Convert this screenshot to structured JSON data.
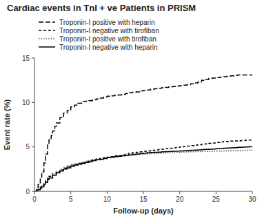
{
  "chart_data": {
    "type": "step",
    "title": "Cardiac events in TnI + ve Patients in PRISM",
    "x_label": "Follow-up (days)",
    "y_label": "Event rate (%)",
    "xlim": [
      0,
      30
    ],
    "ylim": [
      0,
      15
    ],
    "xticks": [
      0,
      5,
      10,
      15,
      20,
      25,
      30
    ],
    "yticks": [
      0,
      5,
      10,
      15
    ],
    "grid": false,
    "legend": "upper left",
    "series": [
      {
        "name": "Troponin-I positive with heparin",
        "color": "#000000",
        "line_style": "longdash",
        "x": [
          0,
          0.3,
          0.5,
          0.8,
          1.0,
          1.3,
          1.5,
          1.8,
          2.0,
          2.3,
          2.5,
          2.8,
          3.0,
          3.5,
          4.0,
          4.5,
          5.0,
          5.5,
          6.0,
          6.5,
          7.0,
          7.5,
          8.0,
          8.5,
          9.0,
          9.5,
          10.0,
          10.5,
          11.0,
          11.5,
          12.0,
          12.5,
          13.0,
          13.5,
          14.0,
          14.5,
          15.0,
          15.5,
          16.0,
          16.5,
          17.0,
          17.5,
          18.0,
          18.5,
          19.0,
          19.5,
          20.0,
          20.5,
          21.0,
          21.5,
          22.0,
          22.5,
          23.0,
          23.5,
          24.0,
          24.5,
          25.0,
          25.5,
          26.0,
          26.5,
          27.0,
          27.5,
          28.0,
          28.5,
          29.0,
          29.5,
          30.0
        ],
        "values": [
          0,
          0.3,
          0.8,
          1.5,
          2.2,
          3.2,
          4.2,
          5.2,
          5.8,
          6.3,
          6.8,
          7.3,
          7.7,
          8.3,
          8.8,
          9.1,
          9.5,
          9.7,
          9.9,
          10.1,
          10.15,
          10.2,
          10.3,
          10.4,
          10.5,
          10.6,
          10.7,
          10.75,
          10.8,
          10.85,
          10.9,
          11.0,
          11.1,
          11.15,
          11.2,
          11.3,
          11.35,
          11.4,
          11.5,
          11.55,
          11.6,
          11.65,
          11.7,
          11.75,
          11.8,
          11.85,
          11.9,
          11.95,
          12.0,
          12.1,
          12.2,
          12.3,
          12.5,
          12.6,
          12.7,
          12.75,
          12.8,
          12.85,
          12.9,
          12.95,
          13.0,
          13.05,
          13.1,
          13.1,
          13.1,
          13.1,
          13.1
        ]
      },
      {
        "name": "Troponin-I negative with tirofiban",
        "color": "#000000",
        "line_style": "dashed",
        "x": [
          0,
          0.3,
          0.5,
          0.8,
          1.0,
          1.3,
          1.5,
          1.8,
          2.0,
          2.5,
          3.0,
          3.5,
          4.0,
          4.5,
          5.0,
          5.5,
          6.0,
          6.5,
          7.0,
          7.5,
          8.0,
          8.5,
          9.0,
          9.5,
          10.0,
          10.5,
          11.0,
          11.5,
          12.0,
          12.5,
          13.0,
          13.5,
          14.0,
          14.5,
          15.0,
          15.5,
          16.0,
          16.5,
          17.0,
          17.5,
          18.0,
          18.5,
          19.0,
          19.5,
          20.0,
          20.5,
          21.0,
          21.5,
          22.0,
          22.5,
          23.0,
          23.5,
          24.0,
          24.5,
          25.0,
          25.5,
          26.0,
          26.5,
          27.0,
          27.5,
          28.0,
          28.5,
          29.0,
          29.5,
          30.0
        ],
        "values": [
          0,
          0.1,
          0.2,
          0.5,
          0.7,
          1.0,
          1.3,
          1.5,
          1.7,
          2.0,
          2.2,
          2.4,
          2.6,
          2.8,
          2.95,
          3.05,
          3.15,
          3.25,
          3.35,
          3.45,
          3.55,
          3.65,
          3.7,
          3.8,
          3.85,
          3.9,
          4.0,
          4.05,
          4.1,
          4.2,
          4.3,
          4.35,
          4.4,
          4.45,
          4.5,
          4.55,
          4.6,
          4.65,
          4.7,
          4.75,
          4.8,
          4.85,
          4.9,
          4.95,
          5.0,
          5.05,
          5.1,
          5.15,
          5.2,
          5.25,
          5.3,
          5.35,
          5.4,
          5.45,
          5.5,
          5.55,
          5.6,
          5.62,
          5.65,
          5.67,
          5.7,
          5.72,
          5.75,
          5.77,
          5.8
        ]
      },
      {
        "name": "Troponin-I positive with tirofiban",
        "color": "#555555",
        "line_style": "dotted",
        "x": [
          0,
          0.3,
          0.5,
          0.8,
          1.0,
          1.3,
          1.5,
          1.8,
          2.0,
          2.5,
          3.0,
          3.5,
          4.0,
          4.5,
          5.0,
          5.5,
          6.0,
          6.5,
          7.0,
          7.5,
          8.0,
          8.5,
          9.0,
          9.5,
          10.0,
          10.5,
          11.0,
          11.5,
          12.0,
          12.5,
          13.0,
          13.5,
          14.0,
          14.5,
          15.0,
          15.5,
          16.0,
          16.5,
          17.0,
          17.5,
          18.0,
          18.5,
          19.0,
          19.5,
          20.0,
          20.5,
          21.0,
          21.5,
          22.0,
          22.5,
          23.0,
          23.5,
          24.0,
          24.5,
          25.0,
          25.5,
          26.0,
          26.5,
          27.0,
          27.5,
          28.0,
          28.5,
          29.0,
          29.5,
          30.0
        ],
        "values": [
          0,
          0.1,
          0.2,
          0.4,
          0.6,
          0.9,
          1.1,
          1.4,
          1.6,
          1.9,
          2.2,
          2.5,
          2.7,
          2.85,
          3.0,
          3.1,
          3.2,
          3.3,
          3.4,
          3.5,
          3.6,
          3.65,
          3.7,
          3.75,
          3.8,
          3.85,
          3.9,
          3.95,
          4.0,
          4.05,
          4.1,
          4.12,
          4.15,
          4.17,
          4.2,
          4.22,
          4.25,
          4.27,
          4.3,
          4.32,
          4.35,
          4.37,
          4.4,
          4.4,
          4.42,
          4.43,
          4.44,
          4.45,
          4.46,
          4.47,
          4.48,
          4.49,
          4.5,
          4.51,
          4.52,
          4.53,
          4.54,
          4.55,
          4.56,
          4.57,
          4.58,
          4.6,
          4.62,
          4.65,
          4.68
        ]
      },
      {
        "name": "Troponin-I negative with heparin",
        "color": "#000000",
        "line_style": "solid",
        "x": [
          0,
          0.3,
          0.5,
          0.8,
          1.0,
          1.3,
          1.5,
          1.8,
          2.0,
          2.5,
          3.0,
          3.5,
          4.0,
          4.5,
          5.0,
          5.5,
          6.0,
          6.5,
          7.0,
          7.5,
          8.0,
          8.5,
          9.0,
          9.5,
          10.0,
          10.5,
          11.0,
          11.5,
          12.0,
          12.5,
          13.0,
          13.5,
          14.0,
          14.5,
          15.0,
          15.5,
          16.0,
          16.5,
          17.0,
          17.5,
          18.0,
          18.5,
          19.0,
          19.5,
          20.0,
          20.5,
          21.0,
          21.5,
          22.0,
          22.5,
          23.0,
          23.5,
          24.0,
          24.5,
          25.0,
          25.5,
          26.0,
          26.5,
          27.0,
          27.5,
          28.0,
          28.5,
          29.0,
          29.5,
          30.0
        ],
        "values": [
          0,
          0.1,
          0.2,
          0.35,
          0.5,
          0.8,
          1.0,
          1.3,
          1.5,
          1.8,
          2.1,
          2.3,
          2.5,
          2.65,
          2.8,
          2.95,
          3.05,
          3.15,
          3.25,
          3.35,
          3.45,
          3.55,
          3.6,
          3.7,
          3.8,
          3.85,
          3.9,
          3.95,
          4.0,
          4.05,
          4.1,
          4.15,
          4.2,
          4.25,
          4.3,
          4.35,
          4.38,
          4.4,
          4.42,
          4.44,
          4.46,
          4.48,
          4.5,
          4.52,
          4.55,
          4.57,
          4.6,
          4.62,
          4.65,
          4.67,
          4.7,
          4.72,
          4.75,
          4.77,
          4.8,
          4.82,
          4.85,
          4.87,
          4.9,
          4.92,
          4.95,
          4.97,
          5.0,
          5.02,
          5.05
        ]
      }
    ]
  }
}
